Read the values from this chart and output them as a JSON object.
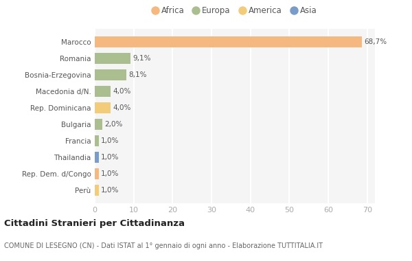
{
  "countries": [
    "Marocco",
    "Romania",
    "Bosnia-Erzegovina",
    "Macedonia d/N.",
    "Rep. Dominicana",
    "Bulgaria",
    "Francia",
    "Thailandia",
    "Rep. Dem. d/Congo",
    "Perù"
  ],
  "values": [
    68.7,
    9.1,
    8.1,
    4.0,
    4.0,
    2.0,
    1.0,
    1.0,
    1.0,
    1.0
  ],
  "labels": [
    "68,7%",
    "9,1%",
    "8,1%",
    "4,0%",
    "4,0%",
    "2,0%",
    "1,0%",
    "1,0%",
    "1,0%",
    "1,0%"
  ],
  "continents": [
    "Africa",
    "Europa",
    "Europa",
    "Europa",
    "America",
    "Europa",
    "Europa",
    "Asia",
    "Africa",
    "America"
  ],
  "colors": {
    "Africa": "#F5B97F",
    "Europa": "#ABBE90",
    "America": "#F2CC78",
    "Asia": "#7A9CC8"
  },
  "legend_order": [
    "Africa",
    "Europa",
    "America",
    "Asia"
  ],
  "xlim": [
    0,
    72
  ],
  "xticks": [
    0,
    10,
    20,
    30,
    40,
    50,
    60,
    70
  ],
  "title": "Cittadini Stranieri per Cittadinanza",
  "subtitle": "COMUNE DI LESEGNO (CN) - Dati ISTAT al 1° gennaio di ogni anno - Elaborazione TUTTITALIA.IT",
  "background_color": "#ffffff"
}
